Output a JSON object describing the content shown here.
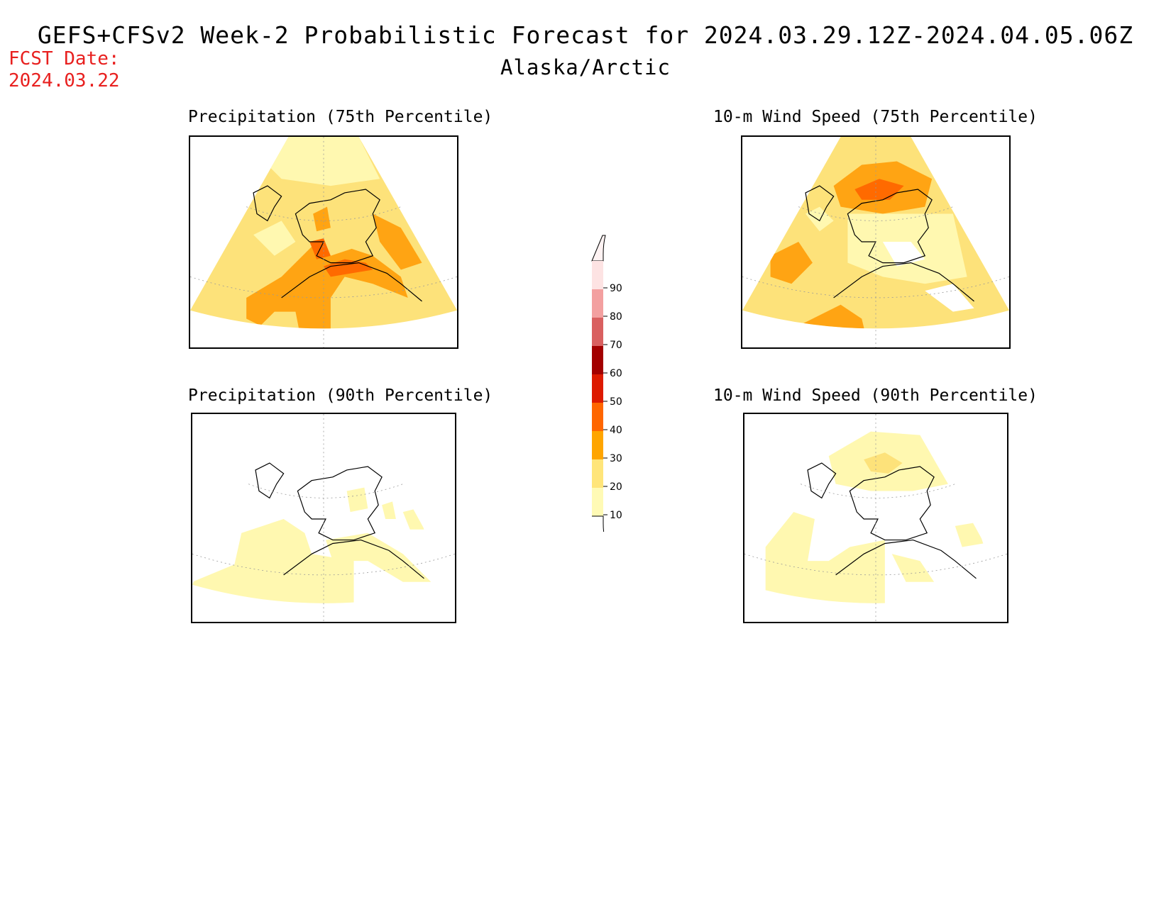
{
  "header": {
    "title": "GEFS+CFSv2 Week-2 Probabilistic Forecast for 2024.03.29.12Z-2024.04.05.06Z",
    "subtitle": "Alaska/Arctic",
    "fcst_label": "FCST Date:",
    "fcst_date": "2024.03.22"
  },
  "panels": [
    {
      "title": "Precipitation (75th Percentile)",
      "variable": "precipitation",
      "percentile": 75
    },
    {
      "title": "10-m Wind Speed (75th Percentile)",
      "variable": "wind",
      "percentile": 75
    },
    {
      "title": "Precipitation (90th Percentile)",
      "variable": "precipitation",
      "percentile": 90
    },
    {
      "title": "10-m Wind Speed (90th Percentile)",
      "variable": "wind",
      "percentile": 90
    }
  ],
  "colorbar": {
    "levels": [
      "90",
      "80",
      "70",
      "60",
      "50",
      "40",
      "30",
      "20",
      "10"
    ],
    "colors": [
      "#fde3e3",
      "#f3a0a0",
      "#d96060",
      "#a30000",
      "#dd1a00",
      "#ff6600",
      "#ffa500",
      "#ffe57a",
      "#fffab5"
    ],
    "units": "%"
  },
  "colors": {
    "fcst_text": "#e8201f",
    "c10_20": "#fff8b0",
    "c20_30": "#fde27a",
    "c30_40": "#ffa413",
    "c40_50": "#ff6a00",
    "coastline": "#000000"
  }
}
